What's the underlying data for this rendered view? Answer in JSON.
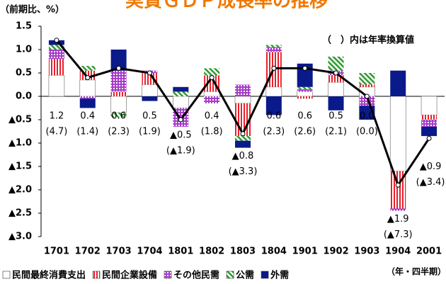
{
  "chart_data": {
    "type": "stacked_bar_line",
    "title": "実質ＧＤＰ成長率の推移",
    "y_label": "（前期比、%）",
    "x_label": "（年・四半期）",
    "note": "（　）内は年率換算値",
    "categories": [
      "1701",
      "1702",
      "1703",
      "1704",
      "1801",
      "1802",
      "1803",
      "1804",
      "1901",
      "1902",
      "1903",
      "1904",
      "2001"
    ],
    "ylim": [
      -3.0,
      1.5
    ],
    "yticks": [
      1.5,
      {
        "value": 1.0,
        "label": "1.0"
      },
      0.5,
      {
        "value": 0.0,
        "label": "0.0"
      },
      {
        "value": -0.5,
        "label": "▲0.5"
      },
      {
        "value": -1.0,
        "label": "▲1.0"
      },
      {
        "value": -1.5,
        "label": "▲1.5"
      },
      {
        "value": -2.0,
        "label": "▲2.0"
      },
      {
        "value": -2.5,
        "label": "▲2.5"
      },
      {
        "value": -3.0,
        "label": "▲3.0"
      }
    ],
    "series": [
      {
        "name": "民間最終消費支出",
        "color": "#ffffff",
        "pattern": "solid",
        "values": [
          0.45,
          0.35,
          -0.35,
          0.25,
          -0.25,
          0.1,
          -0.15,
          0.2,
          0.1,
          0.3,
          0.2,
          -1.6,
          -0.4
        ]
      },
      {
        "name": "民間企業設備",
        "color": "#e8202a",
        "pattern": "vertical",
        "values": [
          0.35,
          0.2,
          0.1,
          0.25,
          0.0,
          0.35,
          -0.7,
          0.75,
          -0.05,
          0.15,
          0.05,
          -0.8,
          -0.1
        ]
      },
      {
        "name": "その他民需",
        "color": "#a63cc8",
        "pattern": "grid",
        "values": [
          0.2,
          -0.05,
          0.45,
          0.05,
          -0.4,
          -0.15,
          0.25,
          0.1,
          0.05,
          0.1,
          -0.2,
          -0.05,
          -0.15
        ]
      },
      {
        "name": "公需",
        "color": "#2e9a2e",
        "pattern": "diagonal",
        "values": [
          0.1,
          0.1,
          -0.1,
          0.0,
          0.1,
          0.15,
          -0.1,
          0.05,
          0.05,
          0.3,
          0.25,
          0.0,
          0.0
        ]
      },
      {
        "name": "外需",
        "color": "#0a1a8a",
        "pattern": "solid",
        "values": [
          0.1,
          -0.2,
          0.45,
          -0.1,
          0.1,
          0.0,
          -0.15,
          -0.4,
          0.5,
          -0.3,
          -0.3,
          0.55,
          -0.2
        ]
      }
    ],
    "line": {
      "name": "実質GDP成長率",
      "color": "#000000",
      "values": [
        1.2,
        0.4,
        0.6,
        0.5,
        -0.5,
        0.4,
        -0.8,
        0.6,
        0.6,
        0.5,
        0.0,
        -1.9,
        -0.9
      ],
      "value_labels": [
        "1.2",
        "0.4",
        "0.6",
        "0.5",
        "▲0.5",
        "0.4",
        "▲0.8",
        "0.6",
        "0.6",
        "0.5",
        "0.0",
        "▲1.9",
        "▲0.9"
      ]
    },
    "annualized": {
      "values": [
        4.7,
        1.4,
        2.3,
        1.9,
        -1.9,
        1.8,
        -3.3,
        2.3,
        2.6,
        2.1,
        0.0,
        -7.3,
        -3.4
      ],
      "value_labels": [
        "(4.7)",
        "(1.4)",
        "(2.3)",
        "(1.9)",
        "(▲1.9)",
        "(1.8)",
        "(▲3.3)",
        "(2.3)",
        "(2.6)",
        "(2.1)",
        "(0.0)",
        "(▲7.3)",
        "(▲3.4)"
      ]
    },
    "legend": "bottom"
  }
}
